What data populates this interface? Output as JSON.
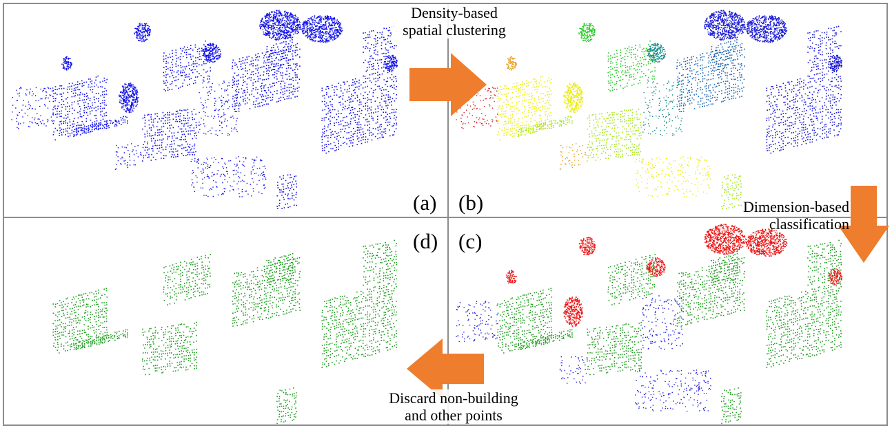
{
  "panels": {
    "a": {
      "label": "(a)",
      "point_color": "#1010ee"
    },
    "b": {
      "label": "(b)",
      "point_colors": [
        "#d81e1e",
        "#e5a020",
        "#ecec10",
        "#a4e618",
        "#28c828",
        "#1a8c8c",
        "#1c64b0",
        "#1a1ad8"
      ]
    },
    "c": {
      "label": "(c)",
      "point_colors": {
        "building": "#1e9c1e",
        "vegetation": "#ee1414",
        "other": "#1e1ee0"
      }
    },
    "d": {
      "label": "(d)",
      "point_color": "#1e9c1e"
    }
  },
  "steps": {
    "clustering": {
      "line1": "Density-based",
      "line2": "spatial clustering"
    },
    "classification": {
      "line1": "Dimension-based",
      "line2": "classification"
    },
    "discard": {
      "line1": "Discard non-building",
      "line2": "and other points"
    }
  },
  "colors": {
    "arrow": "#ef7d2e",
    "divider": "#8c8c8c"
  }
}
